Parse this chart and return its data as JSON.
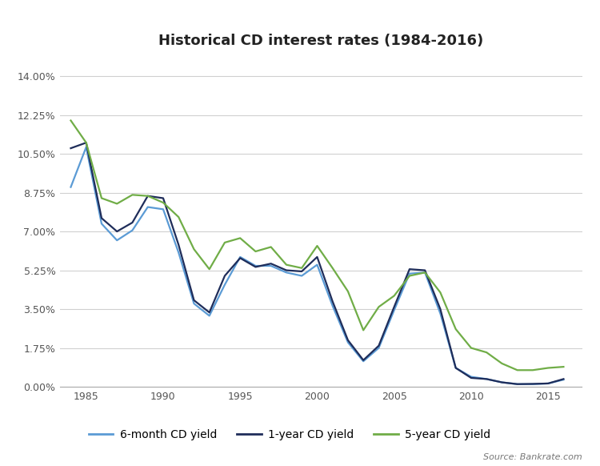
{
  "title": "Historical CD interest rates (1984-2016)",
  "source": "Source: Bankrate.com",
  "years": [
    1984,
    1985,
    1986,
    1987,
    1988,
    1989,
    1990,
    1991,
    1992,
    1993,
    1994,
    1995,
    1996,
    1997,
    1998,
    1999,
    2000,
    2001,
    2002,
    2003,
    2004,
    2005,
    2006,
    2007,
    2008,
    2009,
    2010,
    2011,
    2012,
    2013,
    2014,
    2015,
    2016
  ],
  "six_month": [
    9.0,
    10.8,
    7.35,
    6.6,
    7.05,
    8.1,
    8.0,
    6.05,
    3.75,
    3.2,
    4.6,
    5.85,
    5.45,
    5.45,
    5.15,
    5.0,
    5.5,
    3.65,
    2.0,
    1.15,
    1.75,
    3.45,
    5.1,
    5.15,
    3.3,
    0.85,
    0.45,
    0.35,
    0.2,
    0.12,
    0.12,
    0.15,
    0.32
  ],
  "one_year": [
    10.75,
    11.0,
    7.6,
    7.0,
    7.4,
    8.6,
    8.5,
    6.4,
    3.9,
    3.35,
    5.0,
    5.8,
    5.4,
    5.55,
    5.25,
    5.2,
    5.85,
    3.85,
    2.1,
    1.2,
    1.85,
    3.6,
    5.3,
    5.25,
    3.5,
    0.85,
    0.4,
    0.35,
    0.2,
    0.12,
    0.13,
    0.15,
    0.35
  ],
  "five_year": [
    12.0,
    11.0,
    8.5,
    8.25,
    8.65,
    8.6,
    8.3,
    7.65,
    6.2,
    5.3,
    6.5,
    6.7,
    6.1,
    6.3,
    5.5,
    5.35,
    6.35,
    5.35,
    4.3,
    2.55,
    3.6,
    4.1,
    5.0,
    5.15,
    4.25,
    2.6,
    1.75,
    1.55,
    1.05,
    0.75,
    0.75,
    0.85,
    0.9
  ],
  "color_6month": "#5B9BD5",
  "color_1year": "#1F2D5A",
  "color_5year": "#70AD47",
  "yticks": [
    0.0,
    1.75,
    3.5,
    5.25,
    7.0,
    8.75,
    10.5,
    12.25,
    14.0
  ],
  "ylim": [
    0.0,
    14.7
  ],
  "xlim": [
    1983.3,
    2017.2
  ],
  "background_color": "#FFFFFF",
  "grid_color": "#D0D0D0",
  "title_fontsize": 13,
  "legend_fontsize": 10,
  "tick_fontsize": 9,
  "source_fontsize": 8,
  "xticks": [
    1985,
    1990,
    1995,
    2000,
    2005,
    2010,
    2015
  ]
}
